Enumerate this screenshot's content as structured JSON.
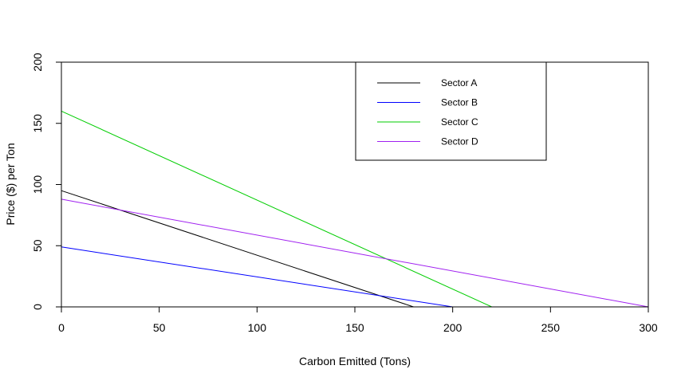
{
  "chart_data": {
    "type": "line",
    "title": "",
    "xlabel": "Carbon Emitted (Tons)",
    "ylabel": "Price ($) per Ton",
    "xlim": [
      0,
      300
    ],
    "ylim": [
      0,
      200
    ],
    "xticks": [
      0,
      50,
      100,
      150,
      200,
      250,
      300
    ],
    "yticks": [
      0,
      50,
      100,
      150,
      200
    ],
    "grid": false,
    "legend_position": "top-right",
    "series": [
      {
        "name": "Sector A",
        "color": "#000000",
        "x": [
          0,
          180
        ],
        "y": [
          95,
          0
        ]
      },
      {
        "name": "Sector B",
        "color": "#0000ff",
        "x": [
          0,
          200
        ],
        "y": [
          49,
          0
        ]
      },
      {
        "name": "Sector C",
        "color": "#00cd00",
        "x": [
          0,
          220
        ],
        "y": [
          160,
          0
        ]
      },
      {
        "name": "Sector D",
        "color": "#a020f0",
        "x": [
          0,
          300
        ],
        "y": [
          88,
          0
        ]
      }
    ]
  }
}
